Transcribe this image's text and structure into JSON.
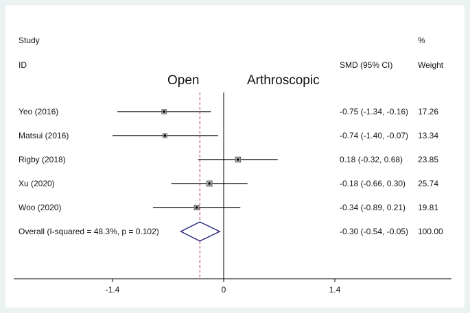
{
  "chart_data": {
    "type": "forest",
    "header": {
      "study_line1": "Study",
      "study_line2": "ID",
      "effect_label": "SMD (95% CI)",
      "weight_line1": "%",
      "weight_line2": "Weight"
    },
    "direction_labels": {
      "left": "Open",
      "right": "Arthroscopic"
    },
    "studies": [
      {
        "name": "Yeo (2016)",
        "smd": -0.75,
        "lo": -1.34,
        "hi": -0.16,
        "ci_text": "-0.75 (-1.34, -0.16)",
        "weight": "17.26"
      },
      {
        "name": "Matsui (2016)",
        "smd": -0.74,
        "lo": -1.4,
        "hi": -0.07,
        "ci_text": "-0.74 (-1.40, -0.07)",
        "weight": "13.34"
      },
      {
        "name": "Rigby (2018)",
        "smd": 0.18,
        "lo": -0.32,
        "hi": 0.68,
        "ci_text": "0.18 (-0.32, 0.68)",
        "weight": "23.85"
      },
      {
        "name": "Xu (2020)",
        "smd": -0.18,
        "lo": -0.66,
        "hi": 0.3,
        "ci_text": "-0.18 (-0.66, 0.30)",
        "weight": "25.74"
      },
      {
        "name": "Woo (2020)",
        "smd": -0.34,
        "lo": -0.89,
        "hi": 0.21,
        "ci_text": "-0.34 (-0.89, 0.21)",
        "weight": "19.81"
      }
    ],
    "overall": {
      "name": "Overall  (I-squared = 48.3%, p = 0.102)",
      "smd": -0.3,
      "lo": -0.54,
      "hi": -0.05,
      "ci_text": "-0.30 (-0.54, -0.05)",
      "weight": "100.00"
    },
    "x_ticks": [
      -1.4,
      0,
      1.4
    ],
    "x_tick_labels": [
      "-1.4",
      "0",
      "1.4"
    ],
    "xlim": [
      -1.4,
      1.4
    ],
    "null_line": 0,
    "colors": {
      "ci_line": "#000000",
      "marker": "#555555",
      "overall_line": "#b03030",
      "diamond": "#1a1a7a"
    }
  }
}
